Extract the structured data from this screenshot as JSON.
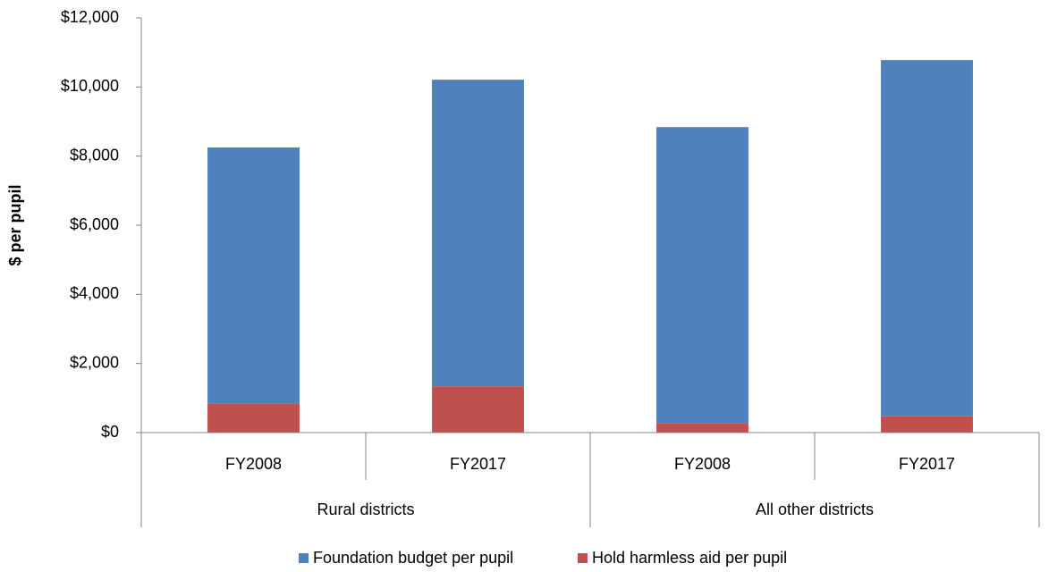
{
  "chart_data": {
    "type": "stacked_bar",
    "ylabel": "$ per pupil",
    "groups": [
      {
        "name": "Rural districts",
        "categories": [
          "FY2008",
          "FY2017"
        ]
      },
      {
        "name": "All other districts",
        "categories": [
          "FY2008",
          "FY2017"
        ]
      }
    ],
    "series": [
      {
        "name": "Foundation budget per pupil",
        "color": "#4f81bd",
        "values": [
          7420,
          8870,
          8560,
          10310
        ]
      },
      {
        "name": "Hold harmless aid per pupil",
        "color": "#c0504d",
        "values": [
          830,
          1340,
          280,
          470
        ]
      }
    ],
    "ylim": [
      0,
      12000
    ],
    "yticks": [
      {
        "value": 0,
        "label": "$0"
      },
      {
        "value": 2000,
        "label": "$2,000"
      },
      {
        "value": 4000,
        "label": "$4,000"
      },
      {
        "value": 6000,
        "label": "$6,000"
      },
      {
        "value": 8000,
        "label": "$8,000"
      },
      {
        "value": 10000,
        "label": "$10,000"
      },
      {
        "value": 12000,
        "label": "$12,000"
      }
    ],
    "grid": false,
    "legend": "bottom"
  }
}
